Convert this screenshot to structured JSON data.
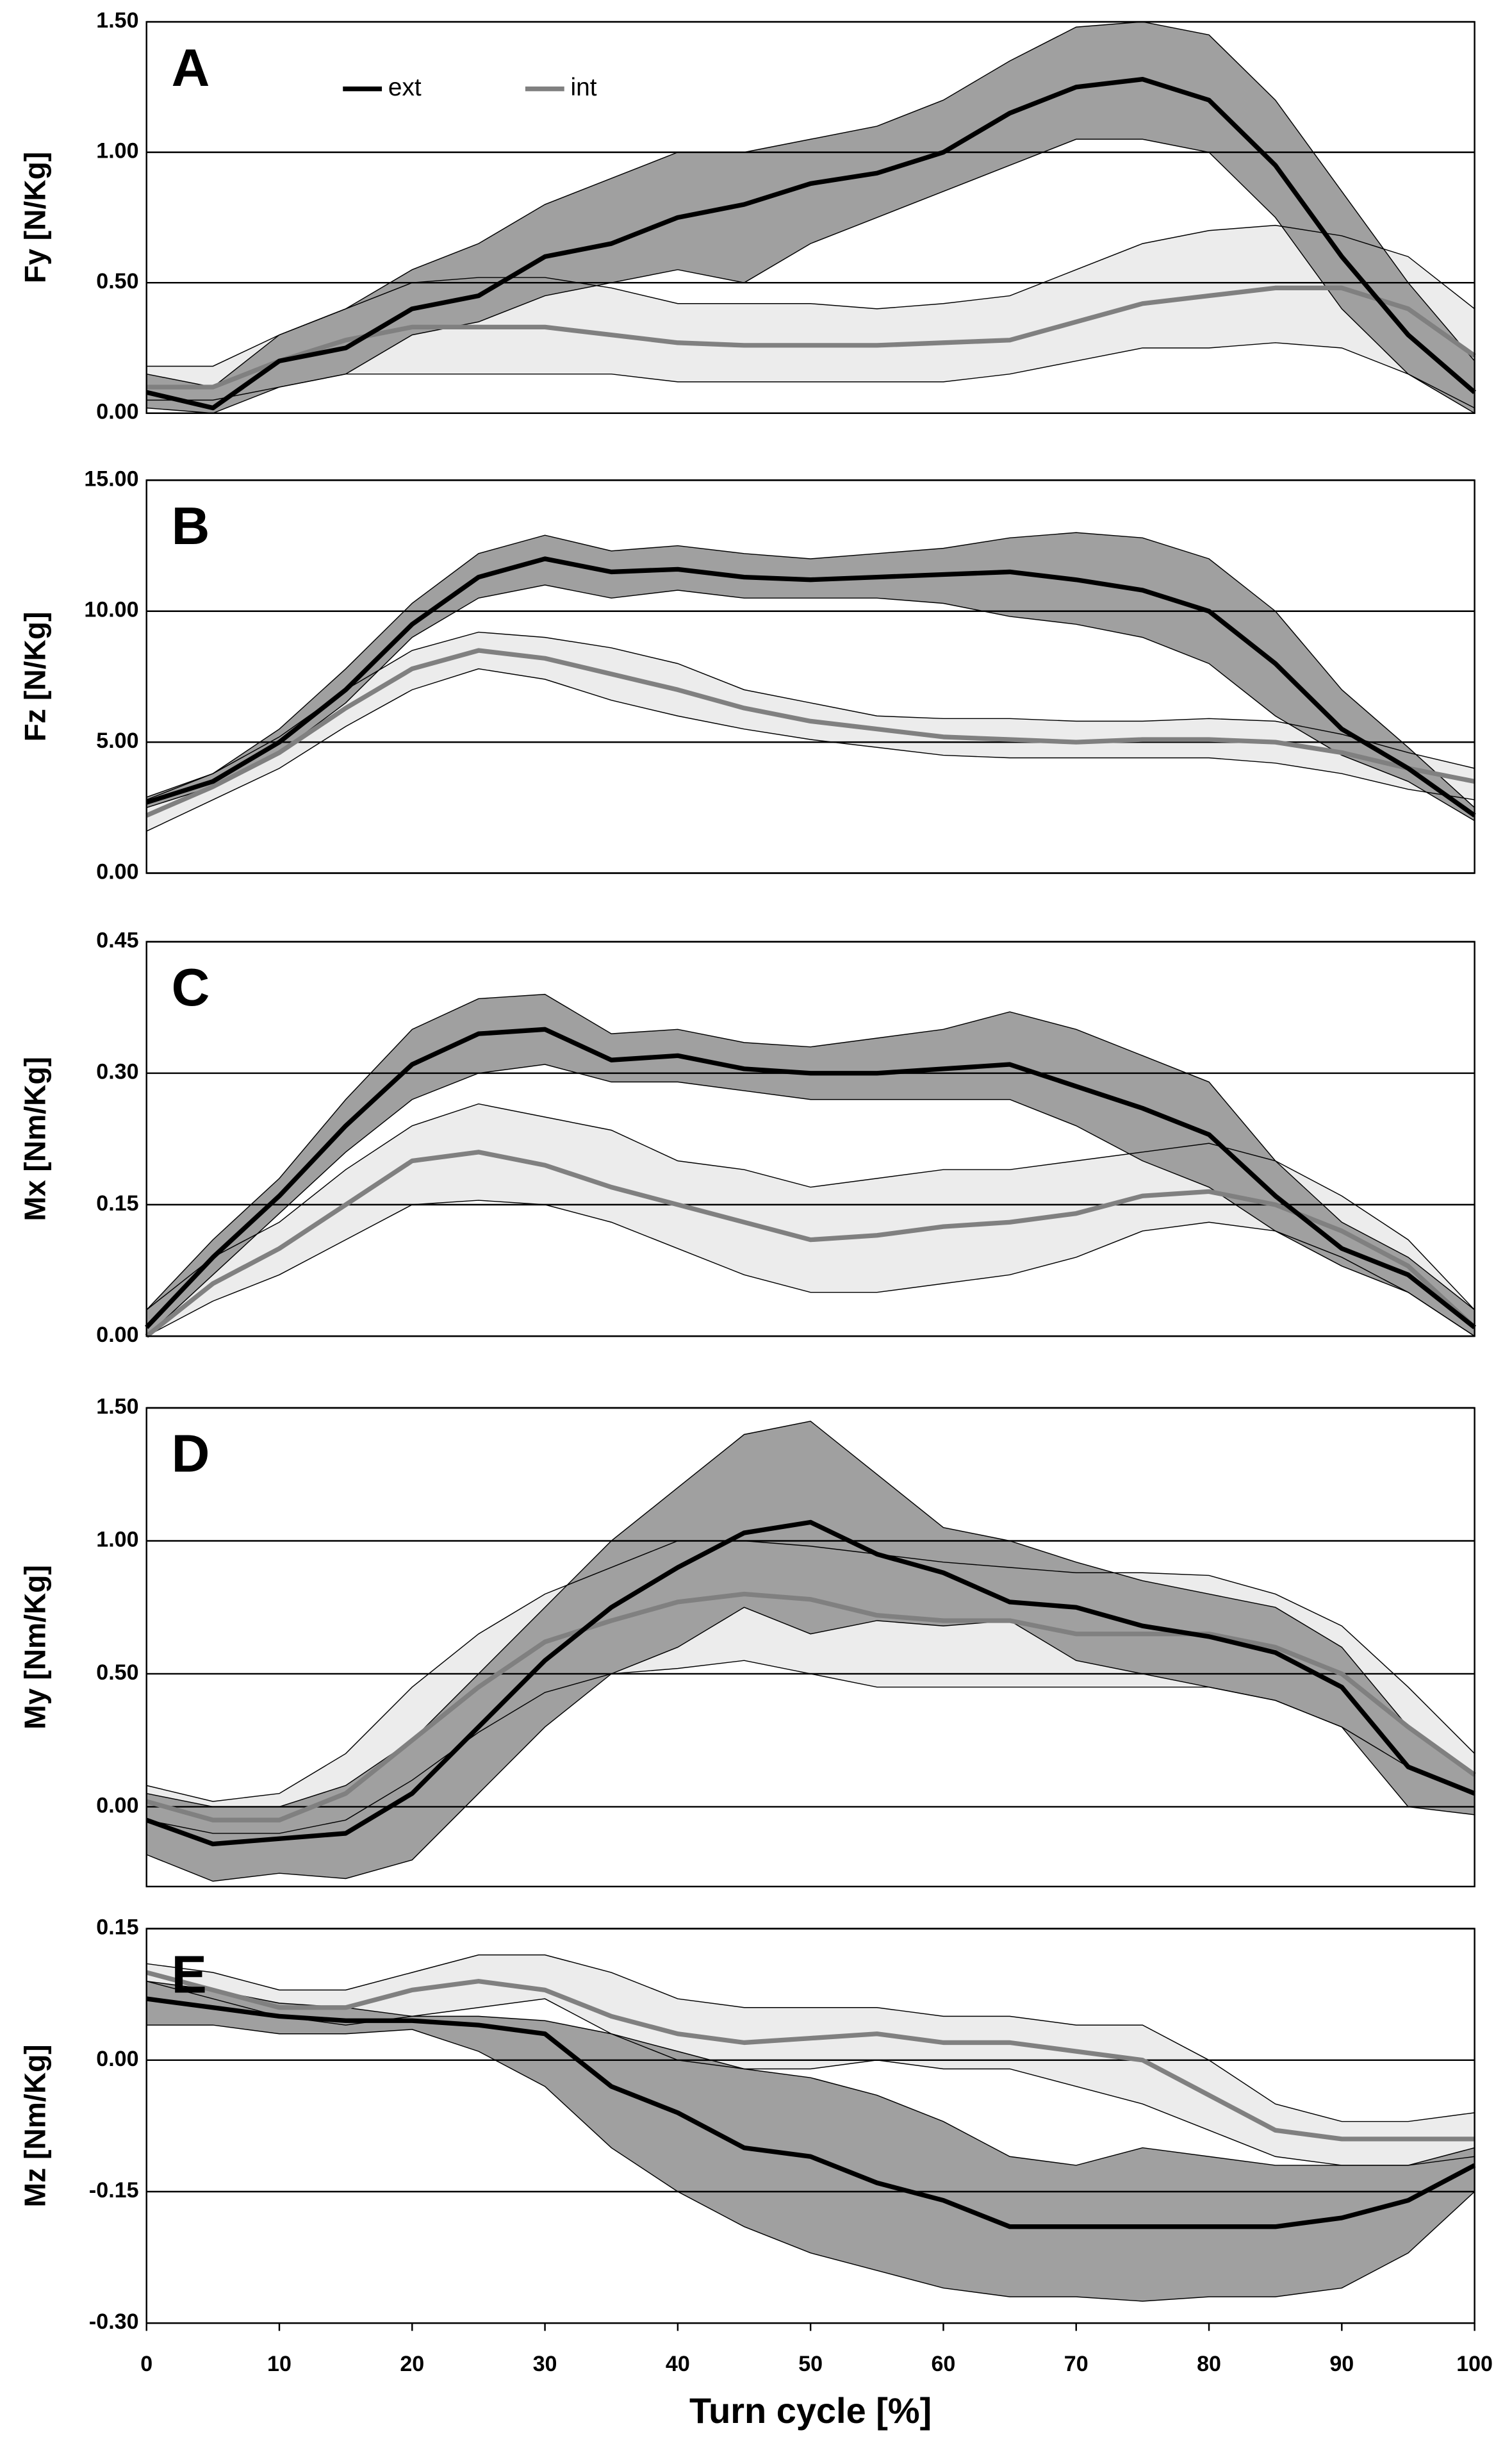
{
  "chart_data": [
    {
      "type": "line",
      "label": "A",
      "ylabel": "Fy [N/Kg]",
      "grid": true,
      "x": [
        0,
        5,
        10,
        15,
        20,
        25,
        30,
        35,
        40,
        45,
        50,
        55,
        60,
        65,
        70,
        75,
        80,
        85,
        90,
        95,
        100
      ],
      "xlim": [
        0,
        100
      ],
      "ylim": [
        0,
        1.5
      ],
      "yticks": [
        {
          "value": 0,
          "label": "0.00"
        },
        {
          "value": 0.5,
          "label": "0.50"
        },
        {
          "value": 1,
          "label": "1.00"
        },
        {
          "value": 1.5,
          "label": "1.50"
        }
      ],
      "series": [
        {
          "name": "ext",
          "color": "#000000",
          "band_color": "#a0a0a0",
          "values": [
            0.08,
            0.02,
            0.2,
            0.25,
            0.4,
            0.45,
            0.6,
            0.65,
            0.75,
            0.8,
            0.88,
            0.92,
            1.0,
            1.15,
            1.25,
            1.28,
            1.2,
            0.95,
            0.6,
            0.3,
            0.08
          ],
          "lower": [
            0.02,
            0,
            0.1,
            0.15,
            0.3,
            0.35,
            0.45,
            0.5,
            0.55,
            0.5,
            0.65,
            0.75,
            0.85,
            0.95,
            1.05,
            1.05,
            1.0,
            0.75,
            0.4,
            0.15,
            0
          ],
          "upper": [
            0.15,
            0.1,
            0.3,
            0.4,
            0.55,
            0.65,
            0.8,
            0.9,
            1.0,
            1.0,
            1.05,
            1.1,
            1.2,
            1.35,
            1.48,
            1.5,
            1.45,
            1.2,
            0.85,
            0.5,
            0.2
          ]
        },
        {
          "name": "int",
          "color": "#808080",
          "band_color": "#ececec",
          "values": [
            0.1,
            0.1,
            0.2,
            0.28,
            0.33,
            0.33,
            0.33,
            0.3,
            0.27,
            0.26,
            0.26,
            0.26,
            0.27,
            0.28,
            0.35,
            0.42,
            0.45,
            0.48,
            0.48,
            0.4,
            0.22
          ],
          "lower": [
            0.05,
            0.05,
            0.1,
            0.15,
            0.15,
            0.15,
            0.15,
            0.15,
            0.12,
            0.12,
            0.12,
            0.12,
            0.12,
            0.15,
            0.2,
            0.25,
            0.25,
            0.27,
            0.25,
            0.15,
            0.02
          ],
          "upper": [
            0.18,
            0.18,
            0.3,
            0.4,
            0.5,
            0.52,
            0.52,
            0.48,
            0.42,
            0.42,
            0.42,
            0.4,
            0.42,
            0.45,
            0.55,
            0.65,
            0.7,
            0.72,
            0.68,
            0.6,
            0.4
          ]
        }
      ]
    },
    {
      "type": "line",
      "label": "B",
      "ylabel": "Fz [N/Kg]",
      "grid": true,
      "x": [
        0,
        5,
        10,
        15,
        20,
        25,
        30,
        35,
        40,
        45,
        50,
        55,
        60,
        65,
        70,
        75,
        80,
        85,
        90,
        95,
        100
      ],
      "xlim": [
        0,
        100
      ],
      "ylim": [
        0,
        15
      ],
      "yticks": [
        {
          "value": 0,
          "label": "0.00"
        },
        {
          "value": 5,
          "label": "5.00"
        },
        {
          "value": 10,
          "label": "10.00"
        },
        {
          "value": 15,
          "label": "15.00"
        }
      ],
      "series": [
        {
          "color": "#000000",
          "band_color": "#a0a0a0",
          "values": [
            2.7,
            3.5,
            5,
            7,
            9.5,
            11.3,
            12,
            11.5,
            11.6,
            11.3,
            11.2,
            11.3,
            11.4,
            11.5,
            11.2,
            10.8,
            10,
            8,
            5.5,
            4,
            2.2
          ],
          "lower": [
            2.5,
            3.3,
            4.6,
            6.5,
            9,
            10.5,
            11,
            10.5,
            10.8,
            10.5,
            10.5,
            10.5,
            10.3,
            9.8,
            9.5,
            9,
            8,
            6,
            4.5,
            3.5,
            2
          ],
          "upper": [
            2.9,
            3.8,
            5.5,
            7.8,
            10.3,
            12.2,
            12.9,
            12.3,
            12.5,
            12.2,
            12,
            12.2,
            12.4,
            12.8,
            13,
            12.8,
            12,
            10,
            7,
            4.8,
            2.5
          ]
        },
        {
          "color": "#808080",
          "band_color": "#ececec",
          "values": [
            2.2,
            3.3,
            4.6,
            6.3,
            7.8,
            8.5,
            8.2,
            7.6,
            7,
            6.3,
            5.8,
            5.5,
            5.2,
            5.1,
            5.0,
            5.1,
            5.1,
            5.0,
            4.6,
            4,
            3.5
          ],
          "lower": [
            1.6,
            2.8,
            4,
            5.6,
            7,
            7.8,
            7.4,
            6.6,
            6,
            5.5,
            5.1,
            4.8,
            4.5,
            4.4,
            4.4,
            4.4,
            4.4,
            4.2,
            3.8,
            3.2,
            2.8
          ],
          "upper": [
            2.8,
            3.8,
            5.2,
            7,
            8.5,
            9.2,
            9,
            8.6,
            8,
            7,
            6.5,
            6,
            5.9,
            5.9,
            5.8,
            5.8,
            5.9,
            5.8,
            5.3,
            4.6,
            4
          ]
        }
      ]
    },
    {
      "type": "line",
      "label": "C",
      "ylabel": "Mx [Nm/Kg]",
      "grid": true,
      "x": [
        0,
        5,
        10,
        15,
        20,
        25,
        30,
        35,
        40,
        45,
        50,
        55,
        60,
        65,
        70,
        75,
        80,
        85,
        90,
        95,
        100
      ],
      "xlim": [
        0,
        100
      ],
      "ylim": [
        0,
        0.45
      ],
      "yticks": [
        {
          "value": 0,
          "label": "0.00"
        },
        {
          "value": 0.15,
          "label": "0.15"
        },
        {
          "value": 0.3,
          "label": "0.30"
        },
        {
          "value": 0.45,
          "label": "0.45"
        }
      ],
      "series": [
        {
          "color": "#000000",
          "band_color": "#a0a0a0",
          "values": [
            0.01,
            0.09,
            0.16,
            0.24,
            0.31,
            0.345,
            0.35,
            0.315,
            0.32,
            0.305,
            0.3,
            0.3,
            0.305,
            0.31,
            0.285,
            0.26,
            0.23,
            0.16,
            0.1,
            0.07,
            0.01
          ],
          "lower": [
            0,
            0.07,
            0.14,
            0.21,
            0.27,
            0.3,
            0.31,
            0.29,
            0.29,
            0.28,
            0.27,
            0.27,
            0.27,
            0.27,
            0.24,
            0.2,
            0.17,
            0.12,
            0.08,
            0.05,
            0
          ],
          "upper": [
            0.03,
            0.11,
            0.18,
            0.27,
            0.35,
            0.385,
            0.39,
            0.345,
            0.35,
            0.335,
            0.33,
            0.34,
            0.35,
            0.37,
            0.35,
            0.32,
            0.29,
            0.2,
            0.13,
            0.09,
            0.03
          ]
        },
        {
          "color": "#808080",
          "band_color": "#ececec",
          "values": [
            0,
            0.06,
            0.1,
            0.15,
            0.2,
            0.21,
            0.195,
            0.17,
            0.15,
            0.13,
            0.11,
            0.115,
            0.125,
            0.13,
            0.14,
            0.16,
            0.165,
            0.15,
            0.12,
            0.08,
            0.01
          ],
          "lower": [
            0,
            0.04,
            0.07,
            0.11,
            0.15,
            0.155,
            0.15,
            0.13,
            0.1,
            0.07,
            0.05,
            0.05,
            0.06,
            0.07,
            0.09,
            0.12,
            0.13,
            0.12,
            0.09,
            0.05,
            0
          ],
          "upper": [
            0.03,
            0.09,
            0.13,
            0.19,
            0.24,
            0.265,
            0.25,
            0.235,
            0.2,
            0.19,
            0.17,
            0.18,
            0.19,
            0.19,
            0.2,
            0.21,
            0.22,
            0.2,
            0.16,
            0.11,
            0.03
          ]
        }
      ]
    },
    {
      "type": "line",
      "label": "D",
      "ylabel": "My [Nm/Kg]",
      "grid": true,
      "x": [
        0,
        5,
        10,
        15,
        20,
        25,
        30,
        35,
        40,
        45,
        50,
        55,
        60,
        65,
        70,
        75,
        80,
        85,
        90,
        95,
        100
      ],
      "xlim": [
        0,
        100
      ],
      "ylim": [
        -0.3,
        1.5
      ],
      "yticks": [
        {
          "value": 0,
          "label": "0.00"
        },
        {
          "value": 0.5,
          "label": "0.50"
        },
        {
          "value": 1,
          "label": "1.00"
        },
        {
          "value": 1.5,
          "label": "1.50"
        }
      ],
      "series": [
        {
          "color": "#000000",
          "band_color": "#a0a0a0",
          "values": [
            -0.05,
            -0.14,
            -0.12,
            -0.1,
            0.05,
            0.3,
            0.55,
            0.75,
            0.9,
            1.03,
            1.07,
            0.95,
            0.88,
            0.77,
            0.75,
            0.68,
            0.64,
            0.58,
            0.45,
            0.15,
            0.05
          ],
          "lower": [
            -0.18,
            -0.28,
            -0.25,
            -0.27,
            -0.2,
            0.05,
            0.3,
            0.5,
            0.6,
            0.75,
            0.65,
            0.7,
            0.68,
            0.7,
            0.55,
            0.5,
            0.45,
            0.4,
            0.3,
            0,
            -0.03
          ],
          "upper": [
            0.05,
            0,
            0,
            0.08,
            0.25,
            0.5,
            0.75,
            1.0,
            1.2,
            1.4,
            1.45,
            1.25,
            1.05,
            1.0,
            0.92,
            0.85,
            0.8,
            0.75,
            0.6,
            0.3,
            0.12
          ]
        },
        {
          "color": "#808080",
          "band_color": "#ececec",
          "values": [
            0.02,
            -0.05,
            -0.05,
            0.05,
            0.25,
            0.45,
            0.62,
            0.7,
            0.77,
            0.8,
            0.78,
            0.72,
            0.7,
            0.7,
            0.65,
            0.65,
            0.65,
            0.6,
            0.5,
            0.3,
            0.12
          ],
          "lower": [
            -0.05,
            -0.1,
            -0.1,
            -0.05,
            0.1,
            0.28,
            0.43,
            0.5,
            0.52,
            0.55,
            0.5,
            0.45,
            0.45,
            0.45,
            0.45,
            0.45,
            0.45,
            0.4,
            0.3,
            0.15,
            0.05
          ],
          "upper": [
            0.08,
            0.02,
            0.05,
            0.2,
            0.45,
            0.65,
            0.8,
            0.9,
            1.0,
            1.0,
            0.98,
            0.95,
            0.92,
            0.9,
            0.88,
            0.88,
            0.87,
            0.8,
            0.68,
            0.45,
            0.2
          ]
        }
      ]
    },
    {
      "type": "line",
      "label": "E",
      "ylabel": "Mz [Nm/Kg]",
      "xlabel": "Turn cycle [%]",
      "grid": true,
      "x": [
        0,
        5,
        10,
        15,
        20,
        25,
        30,
        35,
        40,
        45,
        50,
        55,
        60,
        65,
        70,
        75,
        80,
        85,
        90,
        95,
        100
      ],
      "xlim": [
        0,
        100
      ],
      "xticks": [
        0,
        10,
        20,
        30,
        40,
        50,
        60,
        70,
        80,
        90,
        100
      ],
      "ylim": [
        -0.3,
        0.15
      ],
      "yticks": [
        {
          "value": -0.3,
          "label": "-0.30"
        },
        {
          "value": -0.15,
          "label": "-0.15"
        },
        {
          "value": 0,
          "label": "0.00"
        },
        {
          "value": 0.15,
          "label": "0.15"
        }
      ],
      "series": [
        {
          "color": "#000000",
          "band_color": "#a0a0a0",
          "values": [
            0.07,
            0.06,
            0.05,
            0.045,
            0.045,
            0.04,
            0.03,
            -0.03,
            -0.06,
            -0.1,
            -0.11,
            -0.14,
            -0.16,
            -0.19,
            -0.19,
            -0.19,
            -0.19,
            -0.19,
            -0.18,
            -0.16,
            -0.12
          ],
          "lower": [
            0.04,
            0.04,
            0.03,
            0.03,
            0.035,
            0.01,
            -0.03,
            -0.1,
            -0.15,
            -0.19,
            -0.22,
            -0.24,
            -0.26,
            -0.27,
            -0.27,
            -0.275,
            -0.27,
            -0.27,
            -0.26,
            -0.22,
            -0.15
          ],
          "upper": [
            0.09,
            0.08,
            0.065,
            0.06,
            0.05,
            0.05,
            0.045,
            0.03,
            0.01,
            -0.01,
            -0.02,
            -0.04,
            -0.07,
            -0.11,
            -0.12,
            -0.1,
            -0.11,
            -0.12,
            -0.12,
            -0.12,
            -0.1
          ]
        },
        {
          "color": "#808080",
          "band_color": "#ececec",
          "values": [
            0.1,
            0.08,
            0.06,
            0.06,
            0.08,
            0.09,
            0.08,
            0.05,
            0.03,
            0.02,
            0.025,
            0.03,
            0.02,
            0.02,
            0.01,
            0,
            -0.04,
            -0.08,
            -0.09,
            -0.09,
            -0.09
          ],
          "lower": [
            0.09,
            0.07,
            0.05,
            0.04,
            0.05,
            0.06,
            0.07,
            0.03,
            0.0,
            -0.01,
            -0.01,
            0.0,
            -0.01,
            -0.01,
            -0.03,
            -0.05,
            -0.08,
            -0.11,
            -0.12,
            -0.12,
            -0.11
          ],
          "upper": [
            0.11,
            0.1,
            0.08,
            0.08,
            0.1,
            0.12,
            0.12,
            0.1,
            0.07,
            0.06,
            0.06,
            0.06,
            0.05,
            0.05,
            0.04,
            0.04,
            0.0,
            -0.05,
            -0.07,
            -0.07,
            -0.06
          ]
        }
      ]
    }
  ]
}
